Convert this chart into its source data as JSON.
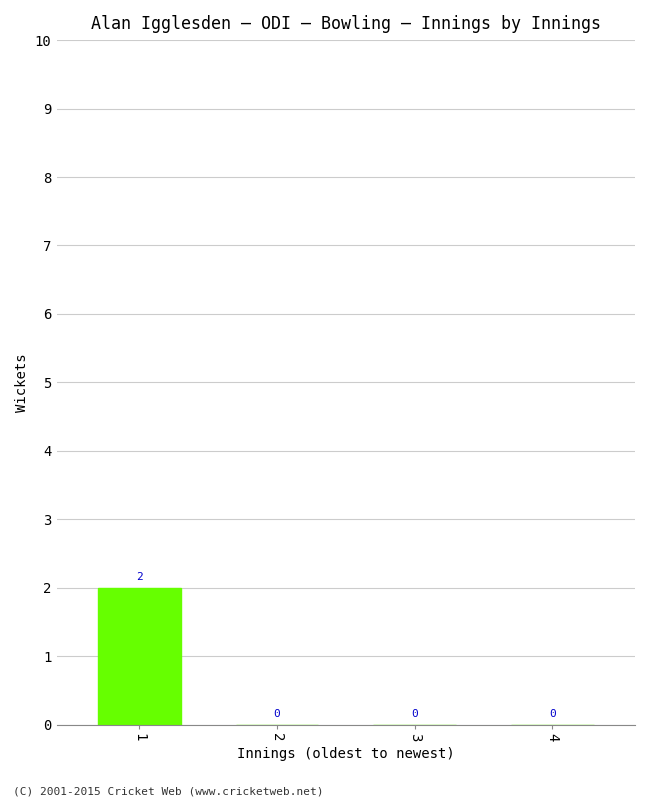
{
  "title": "Alan Igglesden – ODI – Bowling – Innings by Innings",
  "xlabel": "Innings (oldest to newest)",
  "ylabel": "Wickets",
  "categories": [
    1,
    2,
    3,
    4
  ],
  "values": [
    2,
    0,
    0,
    0
  ],
  "bar_color": "#66ff00",
  "ylim": [
    0,
    10
  ],
  "yticks": [
    0,
    1,
    2,
    3,
    4,
    5,
    6,
    7,
    8,
    9,
    10
  ],
  "xticks": [
    1,
    2,
    3,
    4
  ],
  "annotation_color": "#0000cc",
  "background_color": "#ffffff",
  "grid_color": "#cccccc",
  "title_fontsize": 12,
  "axis_label_fontsize": 10,
  "tick_fontsize": 10,
  "annotation_fontsize": 8,
  "footer": "(C) 2001-2015 Cricket Web (www.cricketweb.net)",
  "footer_fontsize": 8,
  "bar_width": 0.6,
  "spine_color": "#888888",
  "xlim": [
    0.4,
    4.6
  ]
}
